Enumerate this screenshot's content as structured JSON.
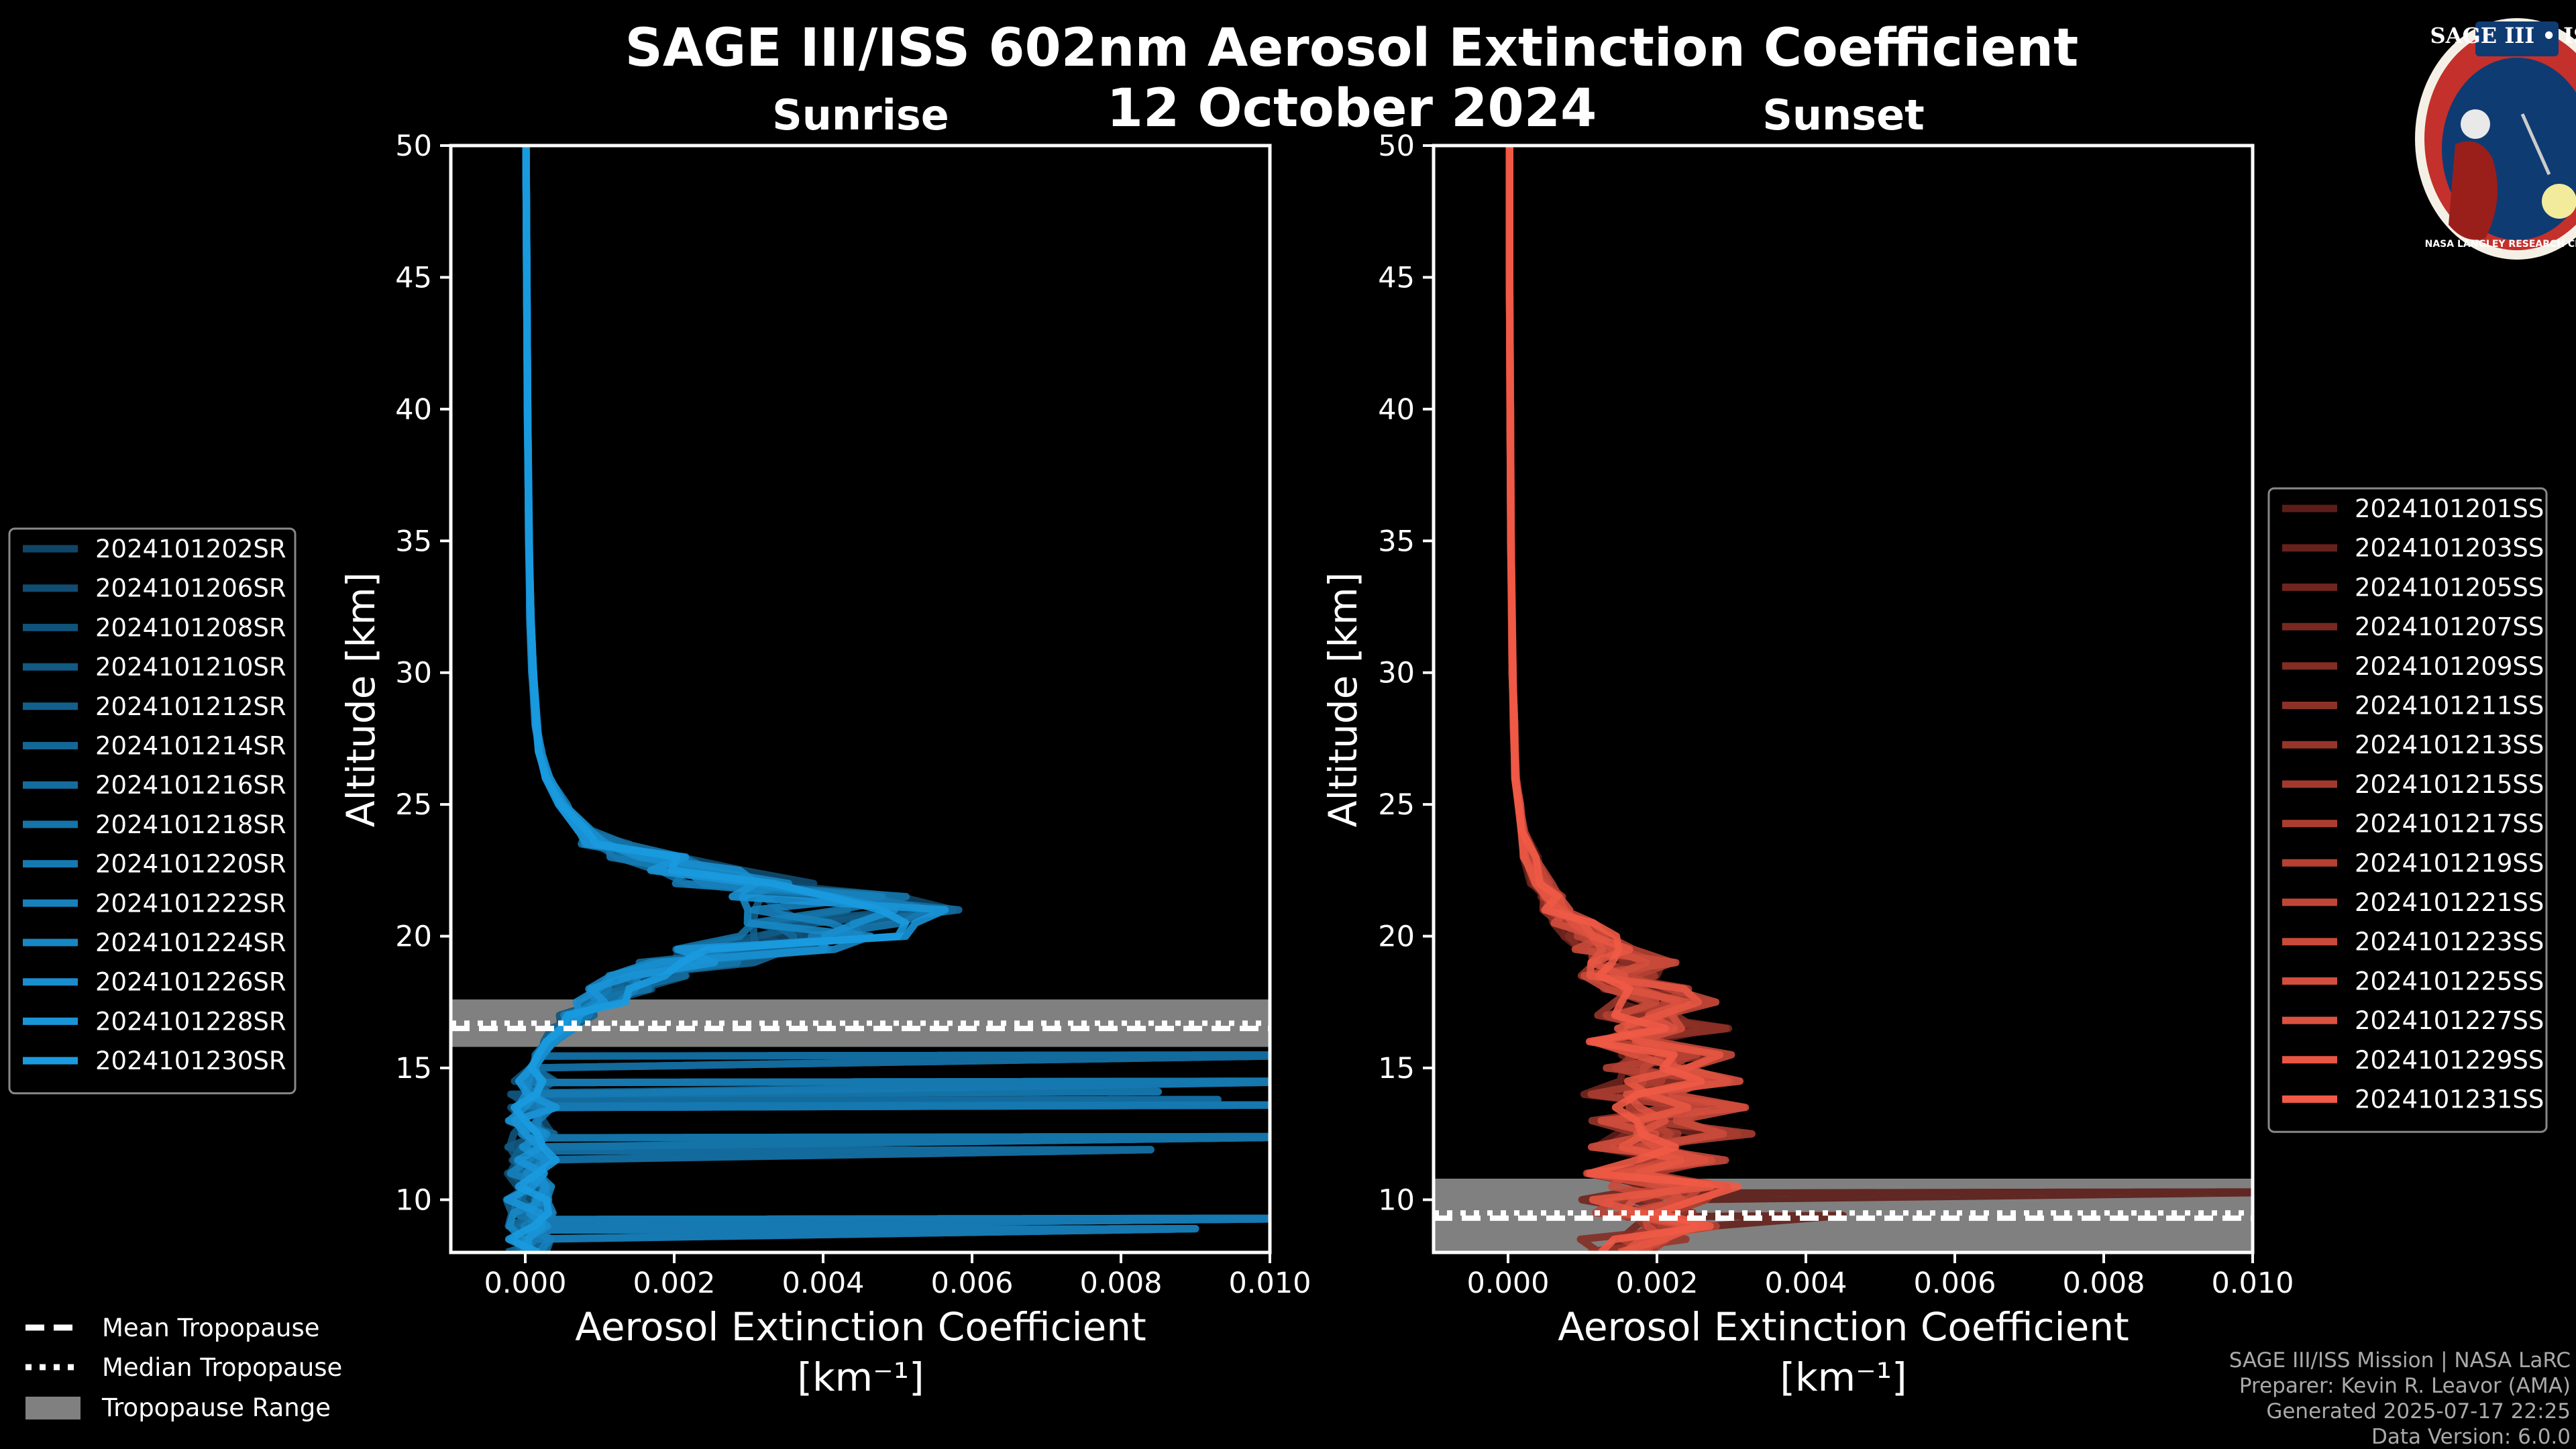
{
  "header": {
    "title": "SAGE III/ISS 602nm Aerosol Extinction Coefficient",
    "date": "12 October 2024"
  },
  "logo": {
    "text": "SAGE III • ISS",
    "ring_text": "NASA LANGLEY RESEARCH CENTER"
  },
  "colors": {
    "sunrise": "#1a9be0",
    "sunset": "#f05a46",
    "tropo_band": "#808080"
  },
  "credits": {
    "line1": "SAGE III/ISS Mission | NASA LaRC",
    "line2": "Preparer: Kevin R. Leavor (AMA)",
    "line3": "Generated 2025-07-17 22:25",
    "line4": "Data Version: 6.0.0"
  },
  "tropopause_legend": {
    "mean": "Mean Tropopause",
    "median": "Median Tropopause",
    "range": "Tropopause Range"
  },
  "chart_data": [
    {
      "type": "line",
      "title": "Sunrise",
      "xlabel": "Aerosol Extinction Coefficient",
      "xunit": "[km⁻¹]",
      "ylabel": "Altitude [km]",
      "xlim": [
        -0.001,
        0.01
      ],
      "ylim": [
        8,
        50
      ],
      "xticks": [
        "0.000",
        "0.002",
        "0.004",
        "0.006",
        "0.008",
        "0.010"
      ],
      "yticks": [
        "10",
        "15",
        "20",
        "25",
        "30",
        "35",
        "40",
        "45",
        "50"
      ],
      "tropopause": {
        "mean": 16.5,
        "median": 16.7,
        "range": [
          15.8,
          17.6
        ]
      },
      "legend": [
        "2024101202SR",
        "2024101206SR",
        "2024101208SR",
        "2024101210SR",
        "2024101212SR",
        "2024101214SR",
        "2024101216SR",
        "2024101218SR",
        "2024101220SR",
        "2024101222SR",
        "2024101224SR",
        "2024101226SR",
        "2024101228SR",
        "2024101230SR"
      ],
      "altitudes": [
        8,
        8.5,
        9,
        9.5,
        10,
        10.5,
        11,
        11.5,
        12,
        12.5,
        13,
        13.5,
        14,
        14.5,
        15,
        15.5,
        16,
        16.5,
        17,
        17.5,
        18,
        18.5,
        19,
        19.5,
        20,
        20.5,
        21,
        21.5,
        22,
        22.5,
        23,
        23.5,
        24,
        25,
        26,
        27,
        28,
        30,
        32,
        35,
        40,
        45,
        50
      ],
      "base_profile": [
        3e-05,
        0.0001,
        5e-05,
        0.0001,
        2e-05,
        0.00012,
        5e-05,
        0.0001,
        4e-05,
        0.00012,
        6e-05,
        0.0001,
        5e-05,
        0.00015,
        0.0001,
        0.0002,
        0.00035,
        0.0005,
        0.0007,
        0.001,
        0.0013,
        0.0017,
        0.0023,
        0.0031,
        0.0038,
        0.0043,
        0.0044,
        0.0039,
        0.0031,
        0.0023,
        0.0016,
        0.0011,
        0.0008,
        0.0005,
        0.0003,
        0.0002,
        0.00015,
        0.0001,
        7e-05,
        5e-05,
        3e-05,
        2e-05,
        1e-05
      ],
      "spikes": [
        {
          "alt": 15.5,
          "value": 0.011
        },
        {
          "alt": 14.5,
          "value": 0.011
        },
        {
          "alt": 14.1,
          "value": 0.0085
        },
        {
          "alt": 13.8,
          "value": 0.0093
        },
        {
          "alt": 13.6,
          "value": 0.011
        },
        {
          "alt": 12.4,
          "value": 0.011
        },
        {
          "alt": 11.9,
          "value": 0.0084
        },
        {
          "alt": 9.3,
          "value": 0.011
        },
        {
          "alt": 8.9,
          "value": 0.009
        }
      ]
    },
    {
      "type": "line",
      "title": "Sunset",
      "xlabel": "Aerosol Extinction Coefficient",
      "xunit": "[km⁻¹]",
      "ylabel": "Altitude [km]",
      "xlim": [
        -0.001,
        0.01
      ],
      "ylim": [
        8,
        50
      ],
      "xticks": [
        "0.000",
        "0.002",
        "0.004",
        "0.006",
        "0.008",
        "0.010"
      ],
      "yticks": [
        "10",
        "15",
        "20",
        "25",
        "30",
        "35",
        "40",
        "45",
        "50"
      ],
      "tropopause": {
        "mean": 9.3,
        "median": 9.5,
        "range": [
          8.0,
          10.8
        ]
      },
      "legend": [
        "2024101201SS",
        "2024101203SS",
        "2024101205SS",
        "2024101207SS",
        "2024101209SS",
        "2024101211SS",
        "2024101213SS",
        "2024101215SS",
        "2024101217SS",
        "2024101219SS",
        "2024101221SS",
        "2024101223SS",
        "2024101225SS",
        "2024101227SS",
        "2024101229SS",
        "2024101231SS"
      ],
      "altitudes": [
        8,
        8.5,
        9,
        9.5,
        10,
        10.5,
        11,
        11.5,
        12,
        12.5,
        13,
        13.5,
        14,
        14.5,
        15,
        15.5,
        16,
        16.5,
        17,
        17.5,
        18,
        18.5,
        19,
        19.5,
        20,
        20.5,
        21,
        21.5,
        22,
        23,
        24,
        25,
        26,
        28,
        30,
        35,
        40,
        45,
        50
      ],
      "base_profile": [
        0.0014,
        0.0017,
        0.0022,
        0.002,
        0.0018,
        0.0024,
        0.0015,
        0.0022,
        0.0016,
        0.0023,
        0.0017,
        0.0025,
        0.0016,
        0.0024,
        0.0018,
        0.0023,
        0.0016,
        0.0022,
        0.0018,
        0.0021,
        0.0019,
        0.0015,
        0.0017,
        0.0013,
        0.0011,
        0.0009,
        0.0007,
        0.00055,
        0.00045,
        0.0003,
        0.0002,
        0.00015,
        0.0001,
        8e-05,
        6e-05,
        4e-05,
        3e-05,
        2e-05,
        2e-05
      ],
      "spikes": [
        {
          "alt": 10.3,
          "value": 0.011
        },
        {
          "alt": 9.4,
          "value": 0.0045
        }
      ]
    }
  ]
}
